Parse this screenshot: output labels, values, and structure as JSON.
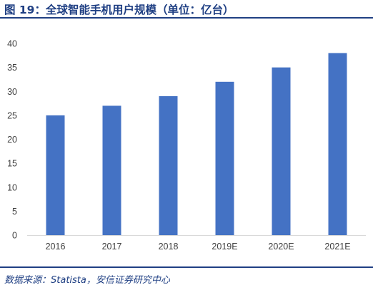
{
  "header": {
    "title": "图 19：全球智能手机用户规模（单位：亿台）"
  },
  "footer": {
    "source": "数据来源：Statista，安信证券研究中心"
  },
  "chart_data": {
    "type": "bar",
    "title": "",
    "xlabel": "",
    "ylabel": "",
    "categories": [
      "2016",
      "2017",
      "2018",
      "2019E",
      "2020E",
      "2021E"
    ],
    "values": [
      25,
      27,
      29,
      32,
      35,
      38
    ],
    "ylim": [
      0,
      40
    ],
    "yticks": [
      "0",
      "5",
      "10",
      "15",
      "20",
      "25",
      "30",
      "35",
      "40"
    ],
    "grid": false,
    "legend": "none",
    "bar_color": "#4472c4"
  }
}
